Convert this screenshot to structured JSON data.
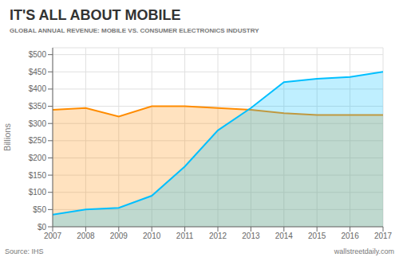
{
  "chart_data": {
    "type": "area",
    "title": "IT'S ALL ABOUT MOBILE",
    "subtitle": "GLOBAL ANNUAL REVENUE: MOBILE VS. CONSUMER ELECTRONICS INDUSTRY",
    "y_label": "Billions",
    "annotations": [
      "Source: IHS",
      "wallstreetdaily.com"
    ],
    "x": [
      2007,
      2008,
      2009,
      2010,
      2011,
      2012,
      2013,
      2014,
      2015,
      2016,
      2017
    ],
    "series": [
      {
        "color": "#FF8C00",
        "values": [
          340,
          345,
          320,
          350,
          350,
          345,
          340,
          330,
          325,
          325,
          325
        ]
      },
      {
        "color": "#00BFFF",
        "values": [
          35,
          50,
          55,
          90,
          175,
          280,
          345,
          420,
          430,
          435,
          450
        ]
      }
    ],
    "xlim": [
      2007,
      2017
    ],
    "xticks": [
      2007,
      2008,
      2009,
      2010,
      2011,
      2012,
      2013,
      2014,
      2015,
      2016,
      2017
    ],
    "ylim": [
      0,
      520
    ],
    "yticks": [
      {
        "value": 0,
        "label": "$0"
      },
      {
        "value": 50,
        "label": "$50"
      },
      {
        "value": 100,
        "label": "$100"
      },
      {
        "value": 150,
        "label": "$150"
      },
      {
        "value": 200,
        "label": "$200"
      },
      {
        "value": 250,
        "label": "$250"
      },
      {
        "value": 300,
        "label": "$300"
      },
      {
        "value": 350,
        "label": "$350"
      },
      {
        "value": 400,
        "label": "$400"
      },
      {
        "value": 450,
        "label": "$450"
      },
      {
        "value": 500,
        "label": "$500"
      }
    ],
    "grid": true
  }
}
